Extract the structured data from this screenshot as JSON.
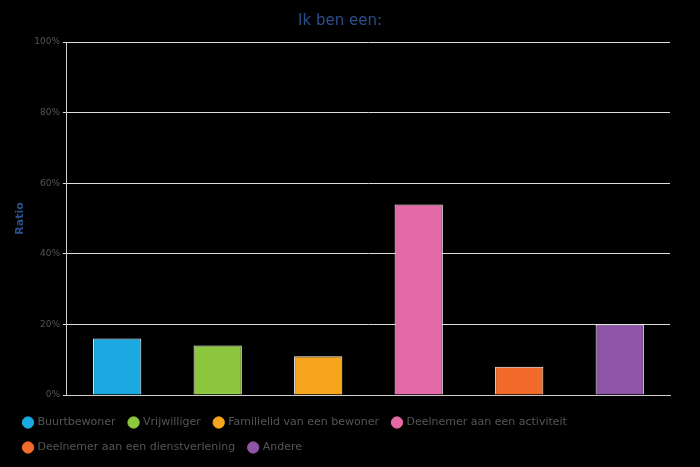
{
  "chart_data": {
    "type": "bar",
    "title": "Ik ben een:",
    "y_label": "Ratio",
    "categories": [
      "Buurtbewoner",
      "Vrijwilliger",
      "Familielid van een bewoner",
      "Deelnemer aan een activiteit",
      "Deelnemer aan een dienstverlening",
      "Andere"
    ],
    "values": [
      16,
      14,
      11,
      54,
      8,
      20
    ],
    "colors": [
      "#1ba9e1",
      "#8dc63f",
      "#f7a51c",
      "#e46aa7",
      "#f26b2a",
      "#8e54a5"
    ],
    "ylim": [
      0,
      100
    ],
    "yticks": [
      {
        "value": 0,
        "label": "0%"
      },
      {
        "value": 20,
        "label": "20%"
      },
      {
        "value": 40,
        "label": "40%"
      },
      {
        "value": 60,
        "label": "60%"
      },
      {
        "value": 80,
        "label": "80%"
      },
      {
        "value": 100,
        "label": "100%"
      }
    ],
    "grid": true,
    "legend": "bottom",
    "tick_labels": "y"
  }
}
